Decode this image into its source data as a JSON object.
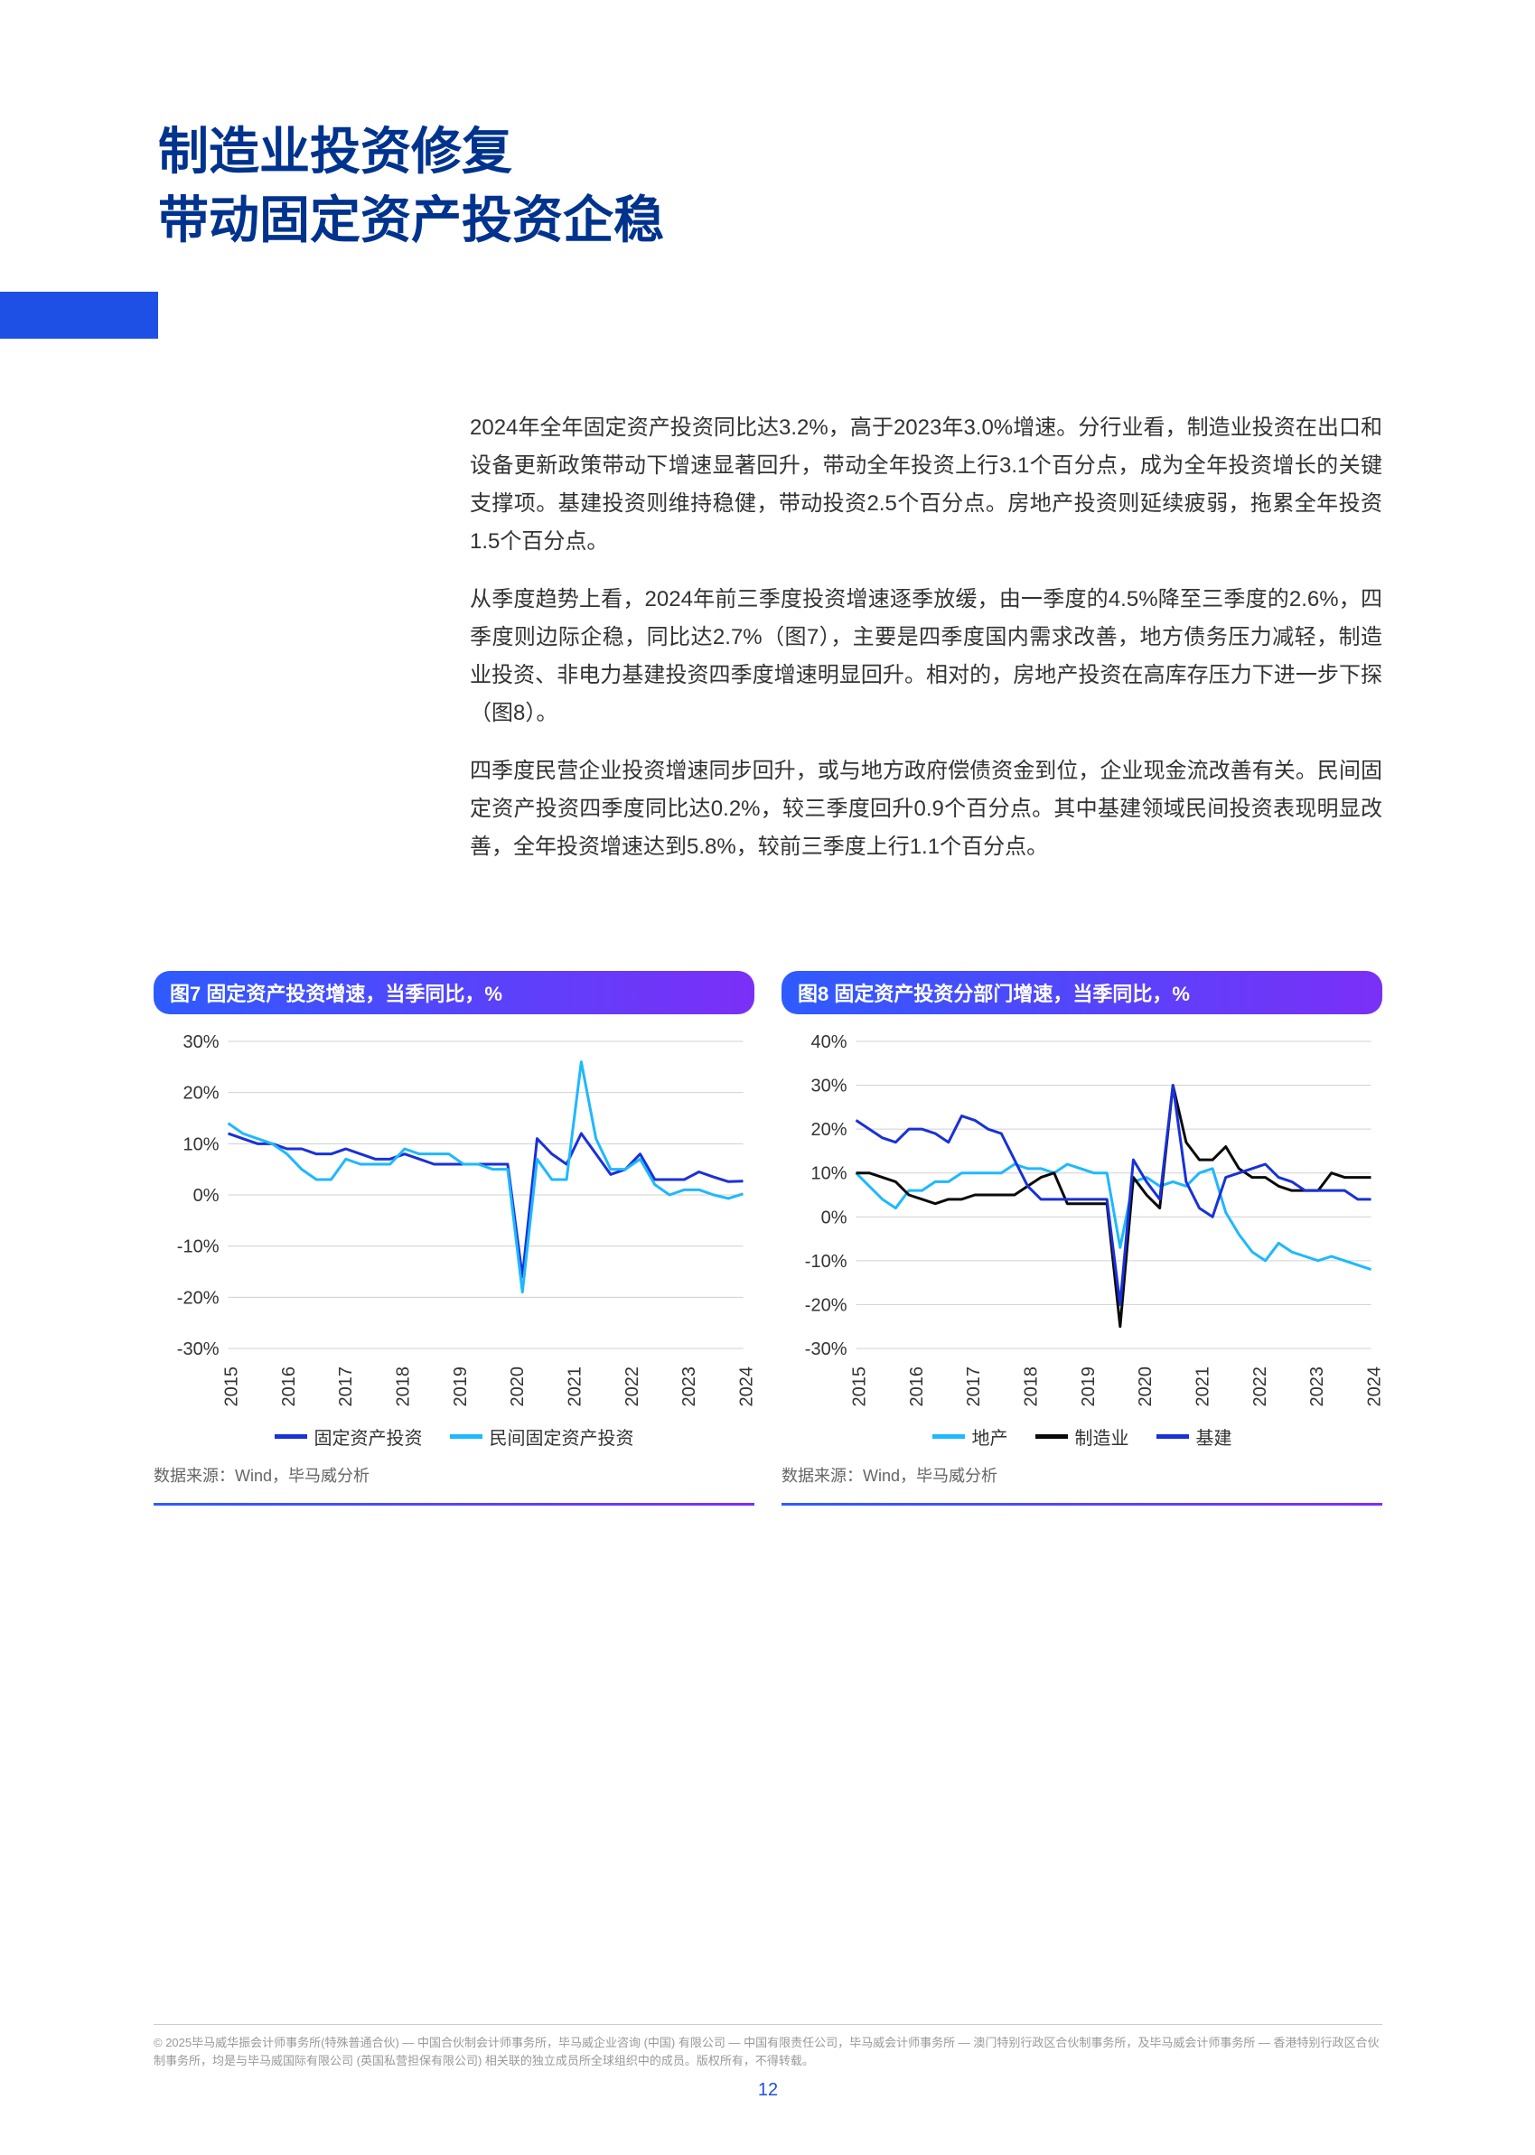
{
  "title": {
    "line1": "制造业投资修复",
    "line2": "带动固定资产投资企稳",
    "color": "#00338d",
    "fontsize": 56
  },
  "accent_bar_color": "#1e50e6",
  "paragraphs": [
    "2024年全年固定资产投资同比达3.2%，高于2023年3.0%增速。分行业看，制造业投资在出口和设备更新政策带动下增速显著回升，带动全年投资上行3.1个百分点，成为全年投资增长的关键支撑项。基建投资则维持稳健，带动投资2.5个百分点。房地产投资则延续疲弱，拖累全年投资1.5个百分点。",
    "从季度趋势上看，2024年前三季度投资增速逐季放缓，由一季度的4.5%降至三季度的2.6%，四季度则边际企稳，同比达2.7%（图7），主要是四季度国内需求改善，地方债务压力减轻，制造业投资、非电力基建投资四季度增速明显回升。相对的，房地产投资在高库存压力下进一步下探（图8）。",
    "四季度民营企业投资增速同步回升，或与地方政府偿债资金到位，企业现金流改善有关。民间固定资产投资四季度同比达0.2%，较三季度回升0.9个百分点。其中基建领域民间投资表现明显改善，全年投资增速达到5.8%，较前三季度上行1.1个百分点。"
  ],
  "chart7": {
    "type": "line",
    "title": "图7 固定资产投资增速，当季同比，%",
    "header_gradient": [
      "#2e5bff",
      "#7b2ff7"
    ],
    "ylim": [
      -30,
      30
    ],
    "ytick_step": 10,
    "yticks": [
      "30%",
      "20%",
      "10%",
      "0%",
      "-10%",
      "-20%",
      "-30%"
    ],
    "xticks": [
      "2015",
      "2016",
      "2017",
      "2018",
      "2019",
      "2020",
      "2021",
      "2022",
      "2023",
      "2024"
    ],
    "series": [
      {
        "name": "固定资产投资",
        "color": "#1931d8",
        "points": [
          12,
          11,
          10,
          10,
          9,
          9,
          8,
          8,
          9,
          8,
          7,
          7,
          8,
          7,
          6,
          6,
          6,
          6,
          6,
          6,
          -16,
          11,
          8,
          6,
          12,
          8,
          4,
          5,
          8,
          3,
          3,
          3,
          4.5,
          3.5,
          2.6,
          2.7
        ]
      },
      {
        "name": "民间固定资产投资",
        "color": "#1eb8ff",
        "points": [
          14,
          12,
          11,
          10,
          8,
          5,
          3,
          3,
          7,
          6,
          6,
          6,
          9,
          8,
          8,
          8,
          6,
          6,
          5,
          5,
          -19,
          7,
          3,
          3,
          26,
          11,
          5,
          5,
          7,
          2,
          0,
          1,
          1,
          0,
          -0.7,
          0.2
        ]
      }
    ],
    "legend_labels": [
      "固定资产投资",
      "民间固定资产投资"
    ],
    "source": "数据来源：Wind，毕马威分析",
    "background_color": "#ffffff",
    "grid_color": "#d0d0d0",
    "line_width": 3
  },
  "chart8": {
    "type": "line",
    "title": "图8 固定资产投资分部门增速，当季同比，%",
    "header_gradient": [
      "#2e5bff",
      "#7b2ff7"
    ],
    "ylim": [
      -30,
      40
    ],
    "ytick_step": 10,
    "yticks": [
      "40%",
      "30%",
      "20%",
      "10%",
      "0%",
      "-10%",
      "-20%",
      "-30%"
    ],
    "xticks": [
      "2015",
      "2016",
      "2017",
      "2018",
      "2019",
      "2020",
      "2021",
      "2022",
      "2023",
      "2024"
    ],
    "series": [
      {
        "name": "地产",
        "color": "#1eb8ff",
        "points": [
          10,
          7,
          4,
          2,
          6,
          6,
          8,
          8,
          10,
          10,
          10,
          10,
          12,
          11,
          11,
          10,
          12,
          11,
          10,
          10,
          -7,
          8,
          9,
          7,
          8,
          7,
          10,
          11,
          1,
          -4,
          -8,
          -10,
          -6,
          -8,
          -9,
          -10,
          -9,
          -10,
          -11,
          -12
        ]
      },
      {
        "name": "制造业",
        "color": "#0a0a0a",
        "points": [
          10,
          10,
          9,
          8,
          5,
          4,
          3,
          4,
          4,
          5,
          5,
          5,
          5,
          7,
          9,
          10,
          3,
          3,
          3,
          3,
          -25,
          9,
          5,
          2,
          30,
          17,
          13,
          13,
          16,
          11,
          9,
          9,
          7,
          6,
          6,
          6,
          10,
          9,
          9,
          9
        ]
      },
      {
        "name": "基建",
        "color": "#1931d8",
        "points": [
          22,
          20,
          18,
          17,
          20,
          20,
          19,
          17,
          23,
          22,
          20,
          19,
          13,
          7,
          4,
          4,
          4,
          4,
          4,
          4,
          -20,
          13,
          8,
          4,
          30,
          8,
          2,
          0,
          9,
          10,
          11,
          12,
          9,
          8,
          6,
          6,
          6,
          6,
          4,
          4
        ]
      }
    ],
    "legend_labels": [
      "地产",
      "制造业",
      "基建"
    ],
    "source": "数据来源：Wind，毕马威分析",
    "background_color": "#ffffff",
    "grid_color": "#d0d0d0",
    "line_width": 3
  },
  "footer": {
    "copyright": "© 2025毕马威华振会计师事务所(特殊普通合伙) — 中国合伙制会计师事务所，毕马威企业咨询 (中国) 有限公司 — 中国有限责任公司，毕马威会计师事务所 — 澳门特别行政区合伙制事务所，及毕马威会计师事务所 — 香港特别行政区合伙制事务所，均是与毕马威国际有限公司 (英国私营担保有限公司) 相关联的独立成员所全球组织中的成员。版权所有，不得转载。",
    "page_number": "12"
  }
}
